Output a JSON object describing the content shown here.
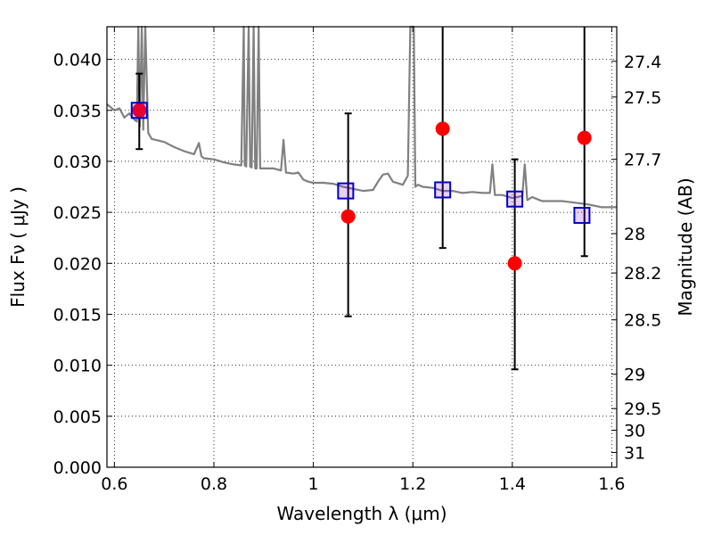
{
  "chart_data": {
    "type": "scatter",
    "xlabel": "Wavelength  λ (μm)",
    "ylabel": "Flux  Fν  ( μJy )",
    "y2label": "Magnitude (AB)",
    "xlim": [
      0.585,
      1.61
    ],
    "ylim": [
      0.0,
      0.0432
    ],
    "grid": true,
    "xticks": [
      {
        "v": 0.6,
        "label": "0.6"
      },
      {
        "v": 0.8,
        "label": "0.8"
      },
      {
        "v": 1.0,
        "label": "1"
      },
      {
        "v": 1.2,
        "label": "1.2"
      },
      {
        "v": 1.4,
        "label": "1.4"
      },
      {
        "v": 1.6,
        "label": "1.6"
      }
    ],
    "yticks": [
      {
        "v": 0.0,
        "label": "0.000"
      },
      {
        "v": 0.005,
        "label": "0.005"
      },
      {
        "v": 0.01,
        "label": "0.010"
      },
      {
        "v": 0.015,
        "label": "0.015"
      },
      {
        "v": 0.02,
        "label": "0.020"
      },
      {
        "v": 0.025,
        "label": "0.025"
      },
      {
        "v": 0.03,
        "label": "0.030"
      },
      {
        "v": 0.035,
        "label": "0.035"
      },
      {
        "v": 0.04,
        "label": "0.040"
      }
    ],
    "y2ticks": [
      {
        "v": 27.4,
        "label": "27.4"
      },
      {
        "v": 27.5,
        "label": "27.5"
      },
      {
        "v": 27.7,
        "label": "27.7"
      },
      {
        "v": 28.0,
        "label": "28"
      },
      {
        "v": 28.2,
        "label": "28.2"
      },
      {
        "v": 28.5,
        "label": "28.5"
      },
      {
        "v": 29.0,
        "label": "29"
      },
      {
        "v": 29.5,
        "label": "29.5"
      },
      {
        "v": 30.0,
        "label": "30"
      },
      {
        "v": 31.0,
        "label": "31"
      }
    ],
    "series": [
      {
        "kind": "model-spectrum",
        "color": "#808080",
        "x": [
          0.585,
          0.6,
          0.61,
          0.62,
          0.63,
          0.64,
          0.645,
          0.648,
          0.651,
          0.655,
          0.658,
          0.662,
          0.668,
          0.675,
          0.7,
          0.72,
          0.74,
          0.76,
          0.77,
          0.775,
          0.78,
          0.8,
          0.82,
          0.84,
          0.855,
          0.86,
          0.862,
          0.865,
          0.87,
          0.873,
          0.876,
          0.88,
          0.883,
          0.886,
          0.89,
          0.893,
          0.9,
          0.92,
          0.935,
          0.94,
          0.945,
          0.96,
          0.97,
          0.98,
          0.99,
          1.0,
          1.02,
          1.04,
          1.06,
          1.08,
          1.1,
          1.12,
          1.13,
          1.14,
          1.15,
          1.16,
          1.18,
          1.19,
          1.195,
          1.198,
          1.2,
          1.202,
          1.205,
          1.21,
          1.22,
          1.24,
          1.26,
          1.28,
          1.3,
          1.32,
          1.34,
          1.355,
          1.36,
          1.365,
          1.38,
          1.4,
          1.41,
          1.42,
          1.425,
          1.43,
          1.44,
          1.45,
          1.46,
          1.5,
          1.55,
          1.58,
          1.61
        ],
        "y": [
          0.0356,
          0.035,
          0.0352,
          0.0343,
          0.0347,
          0.0341,
          0.0339,
          0.0432,
          0.0334,
          0.0432,
          0.0331,
          0.0432,
          0.0328,
          0.0322,
          0.0319,
          0.0314,
          0.031,
          0.0307,
          0.0318,
          0.0305,
          0.0303,
          0.0302,
          0.0299,
          0.0297,
          0.0296,
          0.0432,
          0.0296,
          0.0295,
          0.0432,
          0.0295,
          0.0294,
          0.0432,
          0.0293,
          0.0293,
          0.0432,
          0.0293,
          0.0293,
          0.0293,
          0.0291,
          0.0321,
          0.0289,
          0.0288,
          0.0289,
          0.0282,
          0.028,
          0.0279,
          0.0279,
          0.0278,
          0.0275,
          0.0273,
          0.0271,
          0.0272,
          0.028,
          0.0287,
          0.0288,
          0.028,
          0.0277,
          0.0286,
          0.0432,
          0.0432,
          0.0432,
          0.0432,
          0.0275,
          0.0277,
          0.0275,
          0.0274,
          0.0271,
          0.0271,
          0.0269,
          0.027,
          0.0269,
          0.0269,
          0.0297,
          0.0267,
          0.0267,
          0.0264,
          0.0265,
          0.0266,
          0.0297,
          0.0262,
          0.0265,
          0.0263,
          0.0261,
          0.0261,
          0.0258,
          0.0255,
          0.0255
        ]
      },
      {
        "kind": "model-photometry",
        "marker": "square",
        "color": "#0000cc",
        "x": [
          0.65,
          1.065,
          1.26,
          1.405,
          1.54
        ],
        "y": [
          0.035,
          0.0271,
          0.0272,
          0.0263,
          0.0247
        ]
      },
      {
        "kind": "observed",
        "marker": "circle",
        "color": "#ff0000",
        "x": [
          0.65,
          1.07,
          1.26,
          1.405,
          1.545
        ],
        "y": [
          0.035,
          0.0246,
          0.0332,
          0.02,
          0.0323
        ],
        "err_low": [
          0.0038,
          0.0098,
          0.0117,
          0.0104,
          0.0116
        ],
        "err_high": [
          0.0036,
          0.0101,
          0.01,
          0.0102,
          0.0109
        ]
      }
    ]
  }
}
